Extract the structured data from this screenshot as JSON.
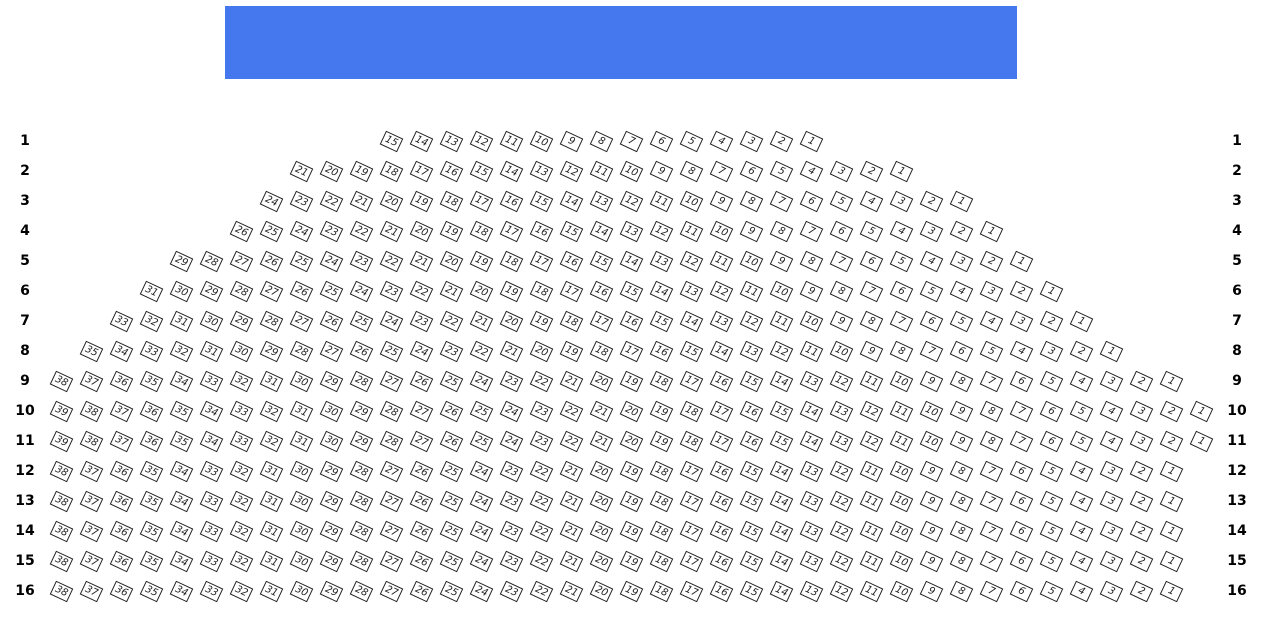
{
  "screen": {
    "color": "#4577EE"
  },
  "rows": [
    {
      "label": "1",
      "seats": 15
    },
    {
      "label": "2",
      "seats": 21
    },
    {
      "label": "3",
      "seats": 24
    },
    {
      "label": "4",
      "seats": 26
    },
    {
      "label": "5",
      "seats": 29
    },
    {
      "label": "6",
      "seats": 31
    },
    {
      "label": "7",
      "seats": 33
    },
    {
      "label": "8",
      "seats": 35
    },
    {
      "label": "9",
      "seats": 38
    },
    {
      "label": "10",
      "seats": 39
    },
    {
      "label": "11",
      "seats": 39
    },
    {
      "label": "12",
      "seats": 38
    },
    {
      "label": "13",
      "seats": 38
    },
    {
      "label": "14",
      "seats": 38
    },
    {
      "label": "15",
      "seats": 38
    },
    {
      "label": "16",
      "seats": 38
    }
  ]
}
